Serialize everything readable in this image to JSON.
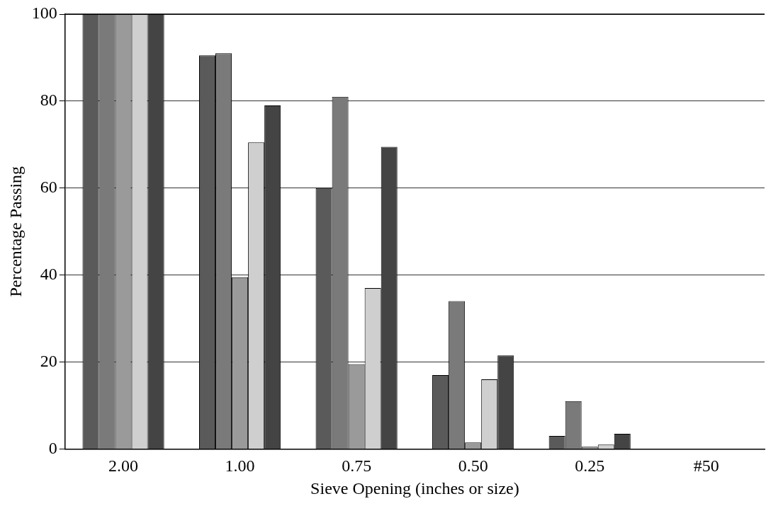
{
  "chart_data": {
    "type": "bar",
    "xlabel": "Sieve Opening (inches or size)",
    "ylabel": "Percentage Passing",
    "categories": [
      "2.00",
      "1.00",
      "0.75",
      "0.50",
      "0.25",
      "#50"
    ],
    "series": [
      {
        "color": "#5a5a5a",
        "values": [
          100,
          90.5,
          60,
          17,
          3,
          0
        ]
      },
      {
        "color": "#7a7a7a",
        "values": [
          100,
          91,
          81,
          34,
          11,
          0
        ]
      },
      {
        "color": "#9a9a9a",
        "values": [
          100,
          39.5,
          19.5,
          1.5,
          0.5,
          0
        ]
      },
      {
        "color": "#cfcfcf",
        "values": [
          100,
          70.5,
          37,
          16,
          1,
          0
        ]
      },
      {
        "color": "#444444",
        "values": [
          100,
          79,
          69.5,
          21.5,
          3.5,
          0
        ]
      }
    ],
    "ylim": [
      0,
      100
    ],
    "yticks": [
      0,
      20,
      40,
      60,
      80,
      100
    ],
    "grid": "y",
    "legend": false
  }
}
